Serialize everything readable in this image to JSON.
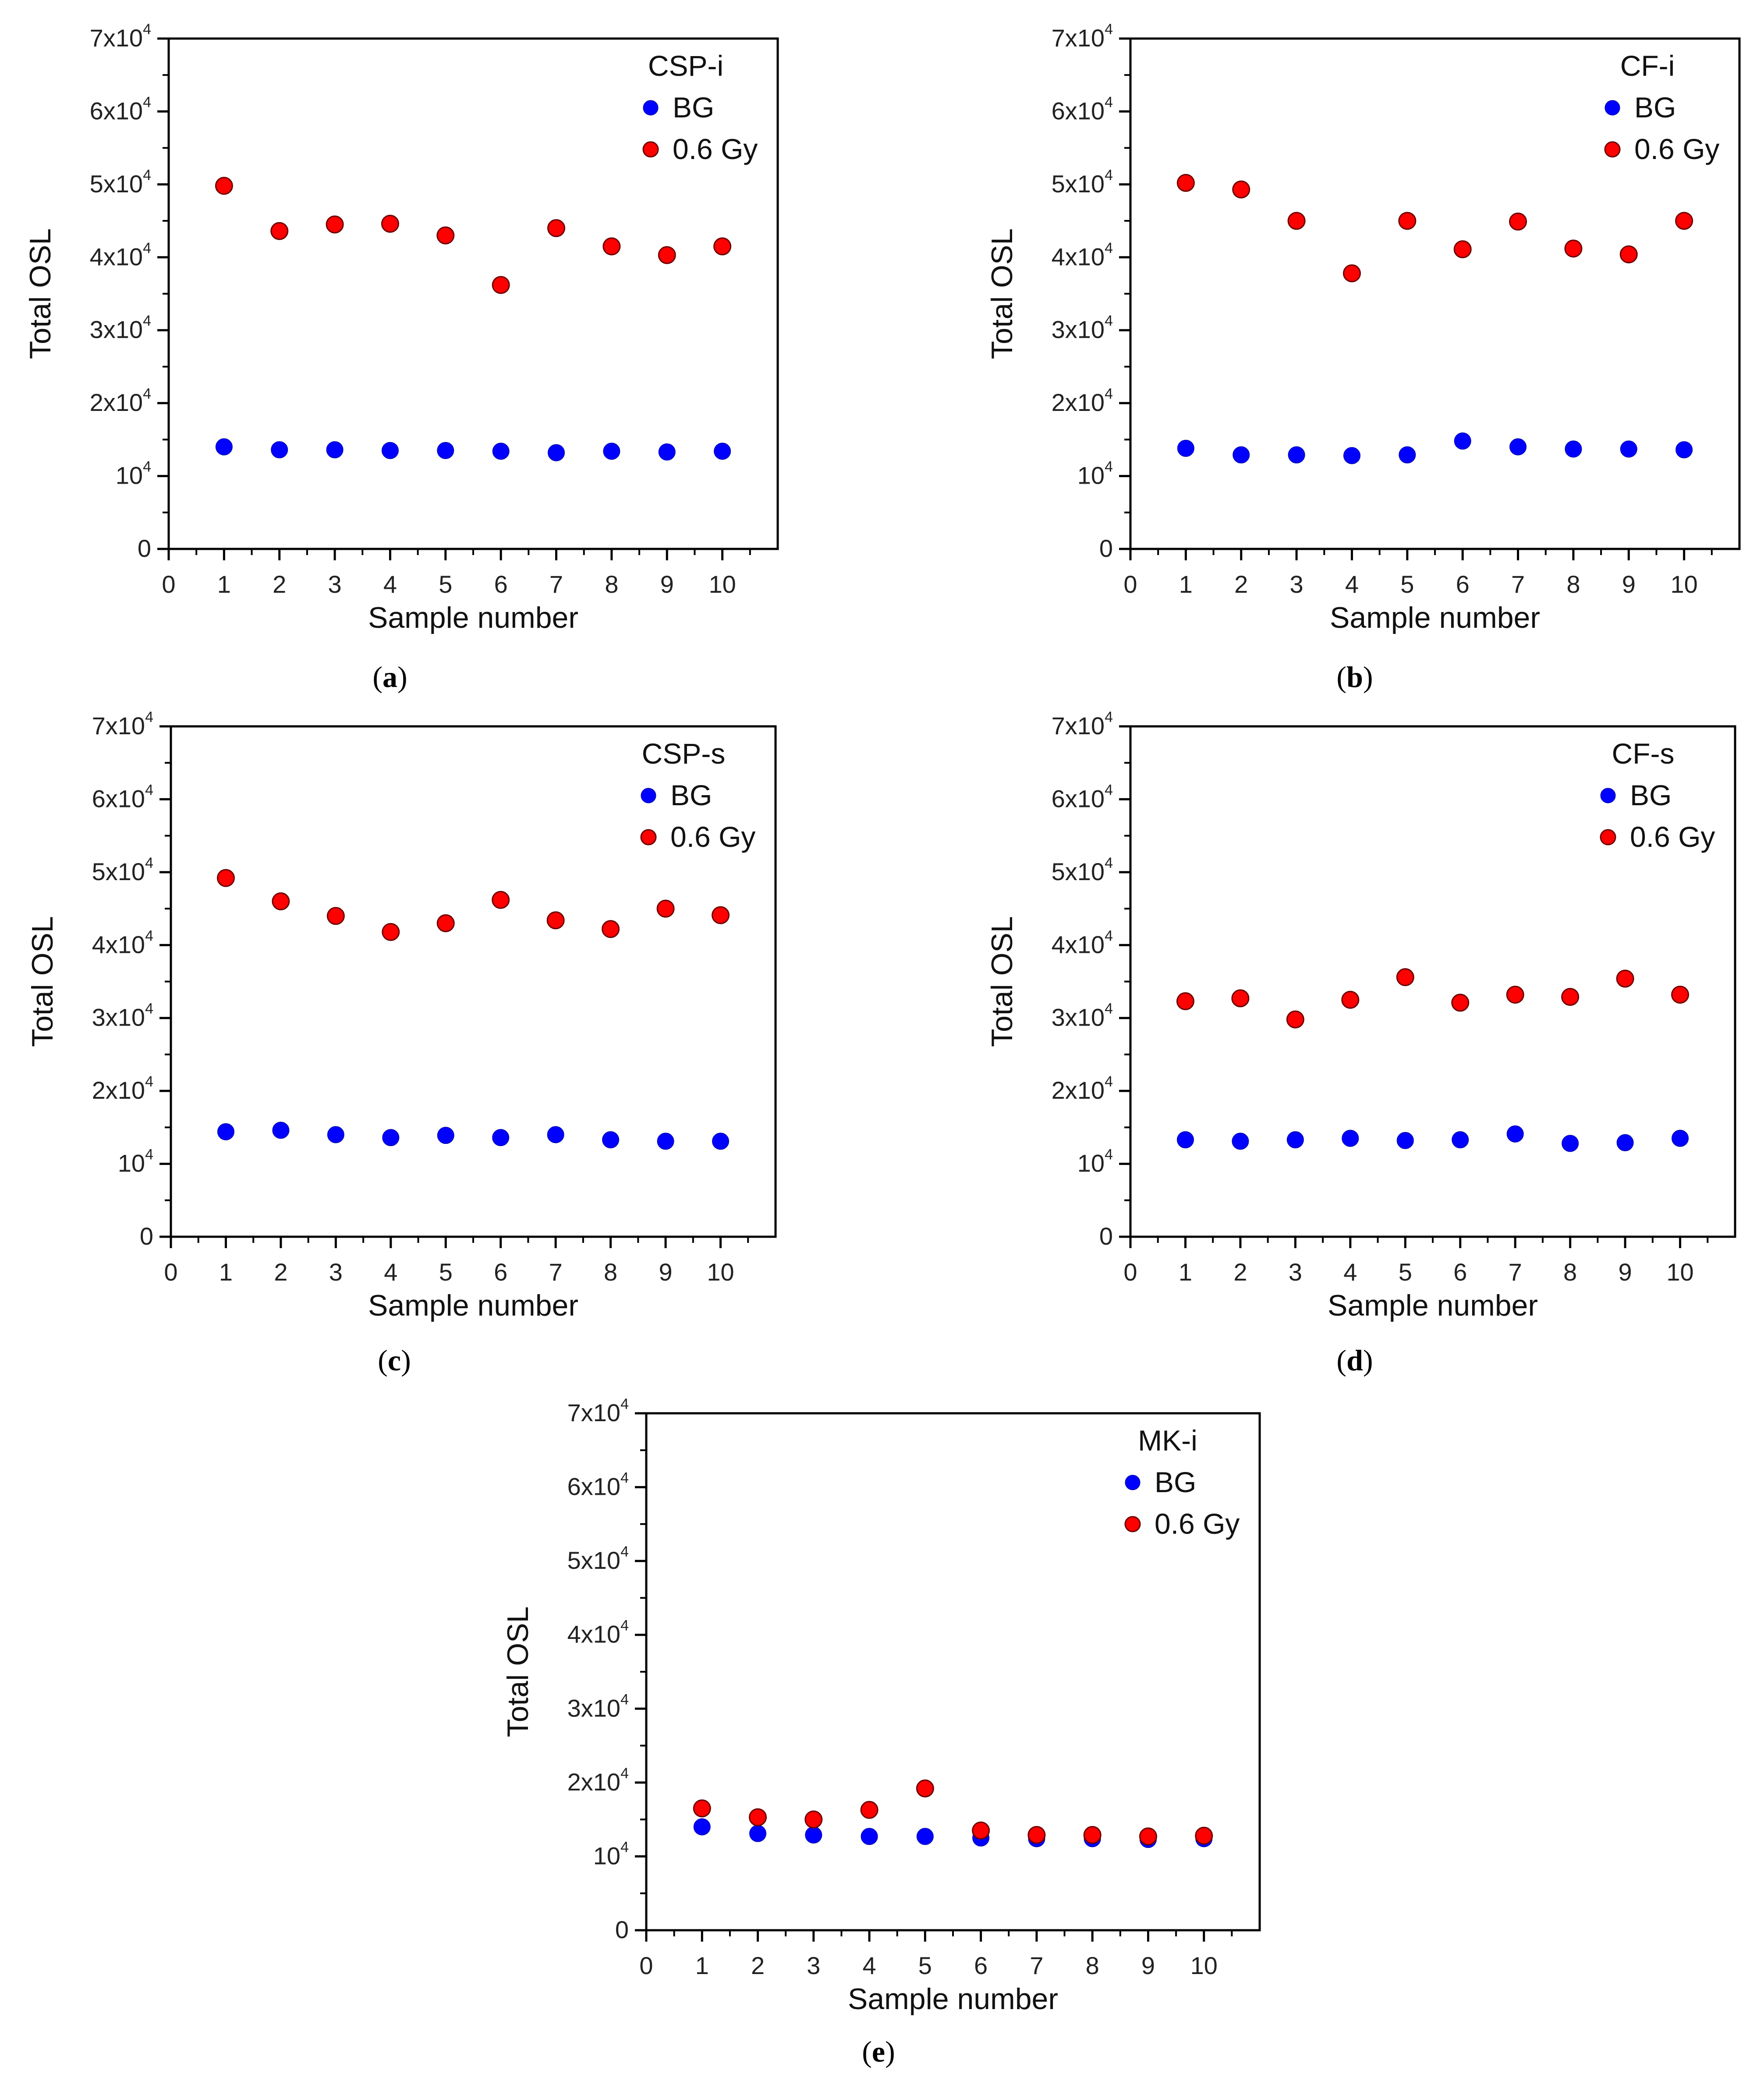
{
  "figure_labels": [
    "(a)",
    "(b)",
    "(c)",
    "(d)",
    "(e)"
  ],
  "colors": {
    "bg": "#0000ff",
    "dose": "#ff0000",
    "dose_edge": "#6a0000",
    "axis": "#000000"
  },
  "chart_data": [
    {
      "type": "scatter",
      "panel_label": "(a)",
      "legend_title": "CSP-i",
      "xlabel": "Sample number",
      "ylabel": "Total OSL",
      "xlim": [
        0,
        11
      ],
      "ylim": [
        0,
        70000
      ],
      "x_ticks": [
        0,
        1,
        2,
        3,
        4,
        5,
        6,
        7,
        8,
        9,
        10
      ],
      "y_ticks": [
        {
          "value": 0,
          "base": "0",
          "exp": ""
        },
        {
          "value": 10000,
          "base": "10",
          "exp": "4"
        },
        {
          "value": 20000,
          "base": "2x10",
          "exp": "4"
        },
        {
          "value": 30000,
          "base": "3x10",
          "exp": "4"
        },
        {
          "value": 40000,
          "base": "4x10",
          "exp": "4"
        },
        {
          "value": 50000,
          "base": "5x10",
          "exp": "4"
        },
        {
          "value": 60000,
          "base": "6x10",
          "exp": "4"
        },
        {
          "value": 70000,
          "base": "7x10",
          "exp": "4"
        }
      ],
      "x": [
        1,
        2,
        3,
        4,
        5,
        6,
        7,
        8,
        9,
        10
      ],
      "series": [
        {
          "name": "BG",
          "color": "#0000ff",
          "values": [
            14000,
            13600,
            13600,
            13500,
            13500,
            13400,
            13200,
            13400,
            13300,
            13400
          ]
        },
        {
          "name": "0.6 Gy",
          "color": "#ff0000",
          "values": [
            49800,
            43600,
            44500,
            44600,
            43000,
            36200,
            44000,
            41500,
            40300,
            41500
          ]
        }
      ]
    },
    {
      "type": "scatter",
      "panel_label": "(b)",
      "legend_title": "CF-i",
      "xlabel": "Sample number",
      "ylabel": "Total OSL",
      "xlim": [
        0,
        11
      ],
      "ylim": [
        0,
        70000
      ],
      "x_ticks": [
        0,
        1,
        2,
        3,
        4,
        5,
        6,
        7,
        8,
        9,
        10
      ],
      "y_ticks": [
        {
          "value": 0,
          "base": "0",
          "exp": ""
        },
        {
          "value": 10000,
          "base": "10",
          "exp": "4"
        },
        {
          "value": 20000,
          "base": "2x10",
          "exp": "4"
        },
        {
          "value": 30000,
          "base": "3x10",
          "exp": "4"
        },
        {
          "value": 40000,
          "base": "4x10",
          "exp": "4"
        },
        {
          "value": 50000,
          "base": "5x10",
          "exp": "4"
        },
        {
          "value": 60000,
          "base": "6x10",
          "exp": "4"
        },
        {
          "value": 70000,
          "base": "7x10",
          "exp": "4"
        }
      ],
      "x": [
        1,
        2,
        3,
        4,
        5,
        6,
        7,
        8,
        9,
        10
      ],
      "series": [
        {
          "name": "BG",
          "color": "#0000ff",
          "values": [
            13800,
            12900,
            12900,
            12800,
            12900,
            14800,
            14000,
            13700,
            13700,
            13600
          ]
        },
        {
          "name": "0.6 Gy",
          "color": "#ff0000",
          "values": [
            50200,
            49300,
            45000,
            37800,
            45000,
            41100,
            44900,
            41200,
            40400,
            45000
          ]
        }
      ]
    },
    {
      "type": "scatter",
      "panel_label": "(c)",
      "legend_title": "CSP-s",
      "xlabel": "Sample number",
      "ylabel": "Total OSL",
      "xlim": [
        0,
        11
      ],
      "ylim": [
        0,
        70000
      ],
      "x_ticks": [
        0,
        1,
        2,
        3,
        4,
        5,
        6,
        7,
        8,
        9,
        10
      ],
      "y_ticks": [
        {
          "value": 0,
          "base": "0",
          "exp": ""
        },
        {
          "value": 10000,
          "base": "10",
          "exp": "4"
        },
        {
          "value": 20000,
          "base": "2x10",
          "exp": "4"
        },
        {
          "value": 30000,
          "base": "3x10",
          "exp": "4"
        },
        {
          "value": 40000,
          "base": "4x10",
          "exp": "4"
        },
        {
          "value": 50000,
          "base": "5x10",
          "exp": "4"
        },
        {
          "value": 60000,
          "base": "6x10",
          "exp": "4"
        },
        {
          "value": 70000,
          "base": "7x10",
          "exp": "4"
        }
      ],
      "x": [
        1,
        2,
        3,
        4,
        5,
        6,
        7,
        8,
        9,
        10
      ],
      "series": [
        {
          "name": "BG",
          "color": "#0000ff",
          "values": [
            14400,
            14600,
            14000,
            13600,
            13900,
            13600,
            14000,
            13300,
            13100,
            13100
          ]
        },
        {
          "name": "0.6 Gy",
          "color": "#ff0000",
          "values": [
            49200,
            46000,
            44000,
            41800,
            43000,
            46200,
            43400,
            42200,
            45000,
            44100
          ]
        }
      ]
    },
    {
      "type": "scatter",
      "panel_label": "(d)",
      "legend_title": "CF-s",
      "xlabel": "Sample number",
      "ylabel": "Total OSL",
      "xlim": [
        0,
        11
      ],
      "ylim": [
        0,
        70000
      ],
      "x_ticks": [
        0,
        1,
        2,
        3,
        4,
        5,
        6,
        7,
        8,
        9,
        10
      ],
      "y_ticks": [
        {
          "value": 0,
          "base": "0",
          "exp": ""
        },
        {
          "value": 10000,
          "base": "10",
          "exp": "4"
        },
        {
          "value": 20000,
          "base": "2x10",
          "exp": "4"
        },
        {
          "value": 30000,
          "base": "3x10",
          "exp": "4"
        },
        {
          "value": 40000,
          "base": "4x10",
          "exp": "4"
        },
        {
          "value": 50000,
          "base": "5x10",
          "exp": "4"
        },
        {
          "value": 60000,
          "base": "6x10",
          "exp": "4"
        },
        {
          "value": 70000,
          "base": "7x10",
          "exp": "4"
        }
      ],
      "x": [
        1,
        2,
        3,
        4,
        5,
        6,
        7,
        8,
        9,
        10
      ],
      "series": [
        {
          "name": "BG",
          "color": "#0000ff",
          "values": [
            13300,
            13100,
            13300,
            13500,
            13200,
            13300,
            14100,
            12800,
            12900,
            13500
          ]
        },
        {
          "name": "0.6 Gy",
          "color": "#ff0000",
          "values": [
            32300,
            32700,
            29800,
            32500,
            35600,
            32100,
            33200,
            32900,
            35400,
            33200
          ]
        }
      ]
    },
    {
      "type": "scatter",
      "panel_label": "(e)",
      "legend_title": "MK-i",
      "xlabel": "Sample number",
      "ylabel": "Total OSL",
      "xlim": [
        0,
        11
      ],
      "ylim": [
        0,
        70000
      ],
      "x_ticks": [
        0,
        1,
        2,
        3,
        4,
        5,
        6,
        7,
        8,
        9,
        10
      ],
      "y_ticks": [
        {
          "value": 0,
          "base": "0",
          "exp": ""
        },
        {
          "value": 10000,
          "base": "10",
          "exp": "4"
        },
        {
          "value": 20000,
          "base": "2x10",
          "exp": "4"
        },
        {
          "value": 30000,
          "base": "3x10",
          "exp": "4"
        },
        {
          "value": 40000,
          "base": "4x10",
          "exp": "4"
        },
        {
          "value": 50000,
          "base": "5x10",
          "exp": "4"
        },
        {
          "value": 60000,
          "base": "6x10",
          "exp": "4"
        },
        {
          "value": 70000,
          "base": "7x10",
          "exp": "4"
        }
      ],
      "x": [
        1,
        2,
        3,
        4,
        5,
        6,
        7,
        8,
        9,
        10
      ],
      "series": [
        {
          "name": "BG",
          "color": "#0000ff",
          "values": [
            14000,
            13100,
            12900,
            12700,
            12700,
            12500,
            12400,
            12400,
            12300,
            12400
          ]
        },
        {
          "name": "0.6 Gy",
          "color": "#ff0000",
          "values": [
            16500,
            15300,
            15000,
            16300,
            19200,
            13500,
            12900,
            12900,
            12700,
            12800
          ]
        }
      ]
    }
  ]
}
